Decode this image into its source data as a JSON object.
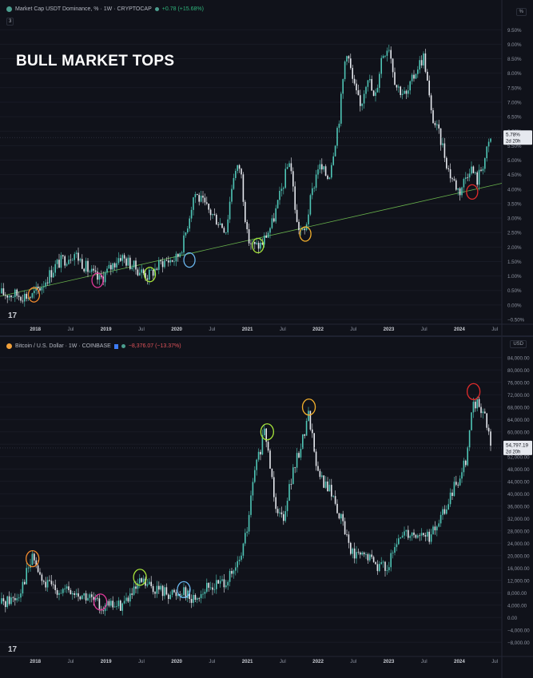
{
  "top_panel": {
    "legend": {
      "symbol": "Market Cap USDT Dominance, % · 1W · CRYPTOCAP",
      "change": "+0.78 (+15.68%)"
    },
    "indicator_badge": "3",
    "unit_button": "%",
    "overlay_title": "BULL MARKET TOPS",
    "price_tag": "5.78%",
    "countdown": "2d 20h",
    "logo": "17"
  },
  "bottom_panel": {
    "legend": {
      "symbol": "Bitcoin / U.S. Dollar · 1W · COINBASE",
      "change": "−8,376.07 (−13.37%)"
    },
    "unit_button": "USD",
    "price_tag": "54,797.19",
    "countdown": "2d 20h",
    "logo": "17"
  },
  "colors": {
    "candle_up": "#4fc5b6",
    "candle_down": "#e6e9ef",
    "trendline": "#69b34c",
    "background": "#10121a",
    "orange": "#f08a2e",
    "pink": "#e0399a",
    "lime": "#a6e33a",
    "blue": "#6ab8f0",
    "gold": "#f4b02c",
    "red": "#e02b2b"
  },
  "chart_data": [
    {
      "type": "line",
      "title": "Market Cap USDT Dominance, % · 1W · CRYPTOCAP",
      "x_ticks": [
        "2018",
        "Jul",
        "2019",
        "Jul",
        "2020",
        "Jul",
        "2021",
        "Jul",
        "2022",
        "Jul",
        "2023",
        "Jul",
        "2024",
        "Jul"
      ],
      "y_ticks": [
        "−0.50%",
        "0.00%",
        "0.50%",
        "1.00%",
        "1.50%",
        "2.00%",
        "2.50%",
        "3.00%",
        "3.50%",
        "4.00%",
        "4.50%",
        "5.00%",
        "5.50%",
        "6.00%",
        "6.50%",
        "7.00%",
        "7.50%",
        "8.00%",
        "8.50%",
        "9.00%",
        "9.50%"
      ],
      "ylim": [
        -0.5,
        9.7
      ],
      "x": [
        2017.5,
        2017.75,
        2017.95,
        2018.1,
        2018.3,
        2018.55,
        2018.75,
        2018.9,
        2019.0,
        2019.2,
        2019.4,
        2019.6,
        2019.8,
        2020.0,
        2020.1,
        2020.25,
        2020.4,
        2020.55,
        2020.7,
        2020.8,
        2020.9,
        2021.0,
        2021.1,
        2021.2,
        2021.35,
        2021.5,
        2021.6,
        2021.7,
        2021.8,
        2021.9,
        2022.0,
        2022.15,
        2022.3,
        2022.4,
        2022.5,
        2022.6,
        2022.7,
        2022.8,
        2022.9,
        2023.0,
        2023.1,
        2023.25,
        2023.4,
        2023.5,
        2023.6,
        2023.75,
        2023.85,
        2024.0,
        2024.15,
        2024.25,
        2024.35,
        2024.45
      ],
      "y": [
        0.4,
        0.35,
        0.3,
        0.7,
        1.4,
        1.8,
        1.2,
        0.85,
        1.1,
        1.7,
        1.3,
        1.0,
        1.5,
        1.6,
        2.2,
        3.9,
        3.4,
        3.0,
        2.6,
        4.5,
        4.8,
        2.3,
        2.0,
        2.1,
        2.8,
        4.1,
        5.1,
        2.8,
        2.4,
        3.7,
        4.8,
        4.4,
        6.5,
        8.9,
        7.6,
        6.8,
        8.0,
        7.0,
        8.6,
        9.0,
        7.6,
        7.2,
        8.2,
        8.6,
        6.6,
        5.6,
        4.6,
        3.9,
        4.8,
        4.3,
        5.0,
        5.78
      ],
      "trendline": [
        [
          2017.5,
          0.3
        ],
        [
          2024.6,
          4.2
        ]
      ],
      "circles": [
        {
          "x": 2017.98,
          "y": 0.35,
          "color": "orange"
        },
        {
          "x": 2018.88,
          "y": 0.85,
          "color": "pink"
        },
        {
          "x": 2019.62,
          "y": 1.05,
          "color": "lime"
        },
        {
          "x": 2020.18,
          "y": 1.55,
          "color": "blue"
        },
        {
          "x": 2021.15,
          "y": 2.05,
          "color": "lime"
        },
        {
          "x": 2021.82,
          "y": 2.45,
          "color": "gold"
        },
        {
          "x": 2024.18,
          "y": 3.9,
          "color": "red"
        }
      ],
      "last_value": 5.78
    },
    {
      "type": "line",
      "title": "Bitcoin / U.S. Dollar · 1W · COINBASE",
      "x_ticks": [
        "2018",
        "Jul",
        "2019",
        "Jul",
        "2020",
        "Jul",
        "2021",
        "Jul",
        "2022",
        "Jul",
        "2023",
        "Jul",
        "2024",
        "Jul"
      ],
      "y_ticks": [
        "−8,000.00",
        "−4,000.00",
        "0.00",
        "4,000.00",
        "8,000.00",
        "12,000.00",
        "16,000.00",
        "20,000.00",
        "24,000.00",
        "28,000.00",
        "32,000.00",
        "36,000.00",
        "40,000.00",
        "44,000.00",
        "48,000.00",
        "52,000.00",
        "56,000.00",
        "60,000.00",
        "64,000.00",
        "68,000.00",
        "72,000.00",
        "76,000.00",
        "80,000.00",
        "84,000.00"
      ],
      "ylim": [
        -10000,
        86000
      ],
      "x": [
        2017.5,
        2017.75,
        2017.92,
        2017.97,
        2018.1,
        2018.3,
        2018.55,
        2018.75,
        2018.9,
        2019.0,
        2019.2,
        2019.4,
        2019.5,
        2019.6,
        2019.8,
        2020.0,
        2020.1,
        2020.2,
        2020.4,
        2020.6,
        2020.8,
        2020.9,
        2021.0,
        2021.1,
        2021.25,
        2021.4,
        2021.5,
        2021.6,
        2021.75,
        2021.87,
        2022.0,
        2022.2,
        2022.35,
        2022.5,
        2022.7,
        2022.87,
        2023.0,
        2023.2,
        2023.4,
        2023.6,
        2023.8,
        2023.95,
        2024.1,
        2024.2,
        2024.35,
        2024.45
      ],
      "y": [
        4500,
        7000,
        17000,
        19500,
        11000,
        9500,
        7500,
        6500,
        4000,
        3600,
        4000,
        8000,
        11500,
        10000,
        8500,
        7500,
        9500,
        5500,
        9000,
        11000,
        13500,
        19000,
        29000,
        47000,
        60000,
        37000,
        32000,
        43000,
        55000,
        66000,
        46000,
        40000,
        30000,
        20000,
        19500,
        16500,
        17000,
        28000,
        27000,
        26000,
        35000,
        43000,
        52000,
        70000,
        66000,
        54797.19
      ],
      "circles": [
        {
          "x": 2017.96,
          "y": 19000,
          "color": "orange"
        },
        {
          "x": 2018.92,
          "y": 5000,
          "color": "pink"
        },
        {
          "x": 2019.48,
          "y": 13000,
          "color": "lime"
        },
        {
          "x": 2020.1,
          "y": 9000,
          "color": "blue"
        },
        {
          "x": 2021.28,
          "y": 60000,
          "color": "lime"
        },
        {
          "x": 2021.87,
          "y": 68000,
          "color": "gold"
        },
        {
          "x": 2024.2,
          "y": 73000,
          "color": "red"
        }
      ],
      "last_value": 54797.19
    }
  ]
}
